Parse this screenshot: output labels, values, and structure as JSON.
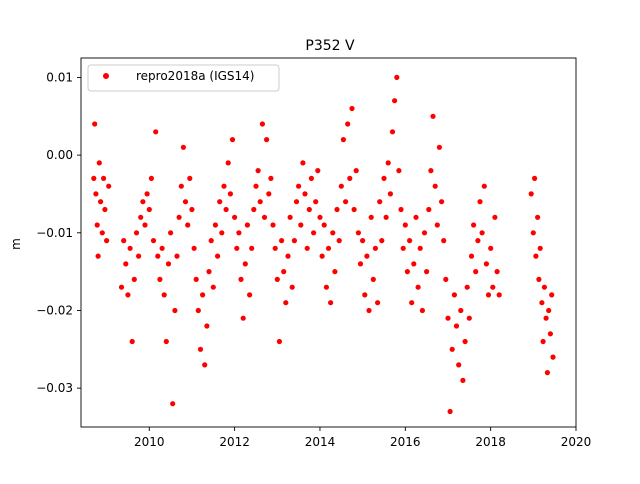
{
  "chart_data": {
    "type": "scatter",
    "title": "P352 V",
    "xlabel": "",
    "ylabel": "m",
    "xlim": [
      2008.4,
      2020.0
    ],
    "ylim": [
      -0.035,
      0.0125
    ],
    "x_ticks": [
      2010,
      2012,
      2014,
      2016,
      2018,
      2020
    ],
    "x_tick_labels": [
      "2010",
      "2012",
      "2014",
      "2016",
      "2018",
      "2020"
    ],
    "y_ticks": [
      0.01,
      0.0,
      -0.01,
      -0.02,
      -0.03
    ],
    "y_tick_labels": [
      "0.01",
      "0.00",
      "−0.01",
      "−0.02",
      "−0.03"
    ],
    "grid": false,
    "legend_position": "top-left",
    "series": [
      {
        "name": "repro2018a (IGS14)",
        "color": "#ff0000",
        "marker": "circle",
        "points": [
          [
            2008.7,
            -0.003
          ],
          [
            2008.72,
            0.004
          ],
          [
            2008.75,
            -0.005
          ],
          [
            2008.78,
            -0.009
          ],
          [
            2008.8,
            -0.013
          ],
          [
            2008.83,
            -0.001
          ],
          [
            2008.86,
            -0.006
          ],
          [
            2008.9,
            -0.01
          ],
          [
            2008.93,
            -0.003
          ],
          [
            2008.96,
            -0.007
          ],
          [
            2009.0,
            -0.011
          ],
          [
            2009.05,
            -0.004
          ],
          [
            2009.35,
            -0.017
          ],
          [
            2009.4,
            -0.011
          ],
          [
            2009.45,
            -0.014
          ],
          [
            2009.5,
            -0.018
          ],
          [
            2009.55,
            -0.012
          ],
          [
            2009.6,
            -0.024
          ],
          [
            2009.65,
            -0.016
          ],
          [
            2009.7,
            -0.01
          ],
          [
            2009.75,
            -0.013
          ],
          [
            2009.8,
            -0.008
          ],
          [
            2009.85,
            -0.006
          ],
          [
            2009.9,
            -0.009
          ],
          [
            2009.95,
            -0.005
          ],
          [
            2010.0,
            -0.007
          ],
          [
            2010.05,
            -0.003
          ],
          [
            2010.1,
            -0.011
          ],
          [
            2010.15,
            0.003
          ],
          [
            2010.2,
            -0.013
          ],
          [
            2010.25,
            -0.016
          ],
          [
            2010.3,
            -0.012
          ],
          [
            2010.35,
            -0.018
          ],
          [
            2010.4,
            -0.024
          ],
          [
            2010.45,
            -0.014
          ],
          [
            2010.5,
            -0.01
          ],
          [
            2010.55,
            -0.032
          ],
          [
            2010.6,
            -0.02
          ],
          [
            2010.65,
            -0.013
          ],
          [
            2010.7,
            -0.008
          ],
          [
            2010.75,
            -0.004
          ],
          [
            2010.8,
            0.001
          ],
          [
            2010.85,
            -0.006
          ],
          [
            2010.9,
            -0.009
          ],
          [
            2010.95,
            -0.003
          ],
          [
            2011.0,
            -0.007
          ],
          [
            2011.05,
            -0.012
          ],
          [
            2011.1,
            -0.016
          ],
          [
            2011.15,
            -0.02
          ],
          [
            2011.2,
            -0.025
          ],
          [
            2011.25,
            -0.018
          ],
          [
            2011.3,
            -0.027
          ],
          [
            2011.35,
            -0.022
          ],
          [
            2011.4,
            -0.015
          ],
          [
            2011.45,
            -0.011
          ],
          [
            2011.5,
            -0.017
          ],
          [
            2011.55,
            -0.009
          ],
          [
            2011.6,
            -0.013
          ],
          [
            2011.65,
            -0.006
          ],
          [
            2011.7,
            -0.01
          ],
          [
            2011.75,
            -0.004
          ],
          [
            2011.8,
            -0.007
          ],
          [
            2011.85,
            -0.001
          ],
          [
            2011.9,
            -0.005
          ],
          [
            2011.95,
            0.002
          ],
          [
            2012.0,
            -0.008
          ],
          [
            2012.05,
            -0.012
          ],
          [
            2012.1,
            -0.01
          ],
          [
            2012.15,
            -0.016
          ],
          [
            2012.2,
            -0.021
          ],
          [
            2012.25,
            -0.014
          ],
          [
            2012.3,
            -0.009
          ],
          [
            2012.35,
            -0.018
          ],
          [
            2012.4,
            -0.012
          ],
          [
            2012.45,
            -0.007
          ],
          [
            2012.5,
            -0.004
          ],
          [
            2012.55,
            -0.002
          ],
          [
            2012.6,
            -0.006
          ],
          [
            2012.65,
            0.004
          ],
          [
            2012.7,
            -0.008
          ],
          [
            2012.75,
            0.002
          ],
          [
            2012.8,
            -0.005
          ],
          [
            2012.85,
            -0.003
          ],
          [
            2012.9,
            -0.009
          ],
          [
            2012.95,
            -0.012
          ],
          [
            2013.0,
            -0.016
          ],
          [
            2013.05,
            -0.024
          ],
          [
            2013.1,
            -0.011
          ],
          [
            2013.15,
            -0.015
          ],
          [
            2013.2,
            -0.019
          ],
          [
            2013.25,
            -0.013
          ],
          [
            2013.3,
            -0.008
          ],
          [
            2013.35,
            -0.017
          ],
          [
            2013.4,
            -0.011
          ],
          [
            2013.45,
            -0.006
          ],
          [
            2013.5,
            -0.004
          ],
          [
            2013.55,
            -0.009
          ],
          [
            2013.6,
            -0.001
          ],
          [
            2013.65,
            -0.005
          ],
          [
            2013.7,
            -0.012
          ],
          [
            2013.75,
            -0.007
          ],
          [
            2013.8,
            -0.003
          ],
          [
            2013.85,
            -0.01
          ],
          [
            2013.9,
            -0.006
          ],
          [
            2013.95,
            -0.002
          ],
          [
            2014.0,
            -0.008
          ],
          [
            2014.05,
            -0.013
          ],
          [
            2014.1,
            -0.009
          ],
          [
            2014.15,
            -0.017
          ],
          [
            2014.2,
            -0.012
          ],
          [
            2014.25,
            -0.019
          ],
          [
            2014.3,
            -0.01
          ],
          [
            2014.35,
            -0.015
          ],
          [
            2014.4,
            -0.007
          ],
          [
            2014.45,
            -0.011
          ],
          [
            2014.5,
            -0.004
          ],
          [
            2014.55,
            0.002
          ],
          [
            2014.6,
            -0.006
          ],
          [
            2014.65,
            0.004
          ],
          [
            2014.7,
            -0.003
          ],
          [
            2014.75,
            0.006
          ],
          [
            2014.8,
            -0.007
          ],
          [
            2014.85,
            -0.002
          ],
          [
            2014.9,
            -0.01
          ],
          [
            2014.95,
            -0.014
          ],
          [
            2015.0,
            -0.011
          ],
          [
            2015.05,
            -0.018
          ],
          [
            2015.1,
            -0.013
          ],
          [
            2015.15,
            -0.02
          ],
          [
            2015.2,
            -0.008
          ],
          [
            2015.25,
            -0.016
          ],
          [
            2015.3,
            -0.012
          ],
          [
            2015.35,
            -0.019
          ],
          [
            2015.4,
            -0.006
          ],
          [
            2015.45,
            -0.011
          ],
          [
            2015.5,
            -0.003
          ],
          [
            2015.55,
            -0.008
          ],
          [
            2015.6,
            -0.001
          ],
          [
            2015.65,
            -0.005
          ],
          [
            2015.7,
            0.003
          ],
          [
            2015.75,
            0.007
          ],
          [
            2015.8,
            0.01
          ],
          [
            2015.85,
            -0.002
          ],
          [
            2015.9,
            -0.007
          ],
          [
            2015.95,
            -0.012
          ],
          [
            2016.0,
            -0.009
          ],
          [
            2016.05,
            -0.015
          ],
          [
            2016.1,
            -0.011
          ],
          [
            2016.15,
            -0.019
          ],
          [
            2016.2,
            -0.014
          ],
          [
            2016.25,
            -0.008
          ],
          [
            2016.3,
            -0.017
          ],
          [
            2016.35,
            -0.012
          ],
          [
            2016.4,
            -0.02
          ],
          [
            2016.45,
            -0.01
          ],
          [
            2016.5,
            -0.015
          ],
          [
            2016.55,
            -0.007
          ],
          [
            2016.6,
            -0.002
          ],
          [
            2016.65,
            0.005
          ],
          [
            2016.7,
            -0.004
          ],
          [
            2016.75,
            -0.009
          ],
          [
            2016.8,
            0.001
          ],
          [
            2016.85,
            -0.006
          ],
          [
            2016.9,
            -0.011
          ],
          [
            2016.95,
            -0.016
          ],
          [
            2017.0,
            -0.021
          ],
          [
            2017.05,
            -0.033
          ],
          [
            2017.1,
            -0.025
          ],
          [
            2017.15,
            -0.018
          ],
          [
            2017.2,
            -0.022
          ],
          [
            2017.25,
            -0.027
          ],
          [
            2017.3,
            -0.02
          ],
          [
            2017.35,
            -0.029
          ],
          [
            2017.4,
            -0.024
          ],
          [
            2017.45,
            -0.017
          ],
          [
            2017.5,
            -0.021
          ],
          [
            2017.55,
            -0.013
          ],
          [
            2017.6,
            -0.009
          ],
          [
            2017.65,
            -0.015
          ],
          [
            2017.7,
            -0.011
          ],
          [
            2017.75,
            -0.006
          ],
          [
            2017.8,
            -0.01
          ],
          [
            2017.85,
            -0.004
          ],
          [
            2017.9,
            -0.014
          ],
          [
            2017.95,
            -0.018
          ],
          [
            2018.0,
            -0.012
          ],
          [
            2018.05,
            -0.017
          ],
          [
            2018.1,
            -0.008
          ],
          [
            2018.15,
            -0.015
          ],
          [
            2018.2,
            -0.018
          ],
          [
            2018.95,
            -0.005
          ],
          [
            2019.0,
            -0.01
          ],
          [
            2019.03,
            -0.003
          ],
          [
            2019.06,
            -0.013
          ],
          [
            2019.1,
            -0.008
          ],
          [
            2019.13,
            -0.016
          ],
          [
            2019.16,
            -0.012
          ],
          [
            2019.2,
            -0.019
          ],
          [
            2019.23,
            -0.024
          ],
          [
            2019.26,
            -0.017
          ],
          [
            2019.3,
            -0.021
          ],
          [
            2019.33,
            -0.028
          ],
          [
            2019.36,
            -0.02
          ],
          [
            2019.4,
            -0.023
          ],
          [
            2019.43,
            -0.018
          ],
          [
            2019.46,
            -0.026
          ]
        ]
      }
    ]
  }
}
